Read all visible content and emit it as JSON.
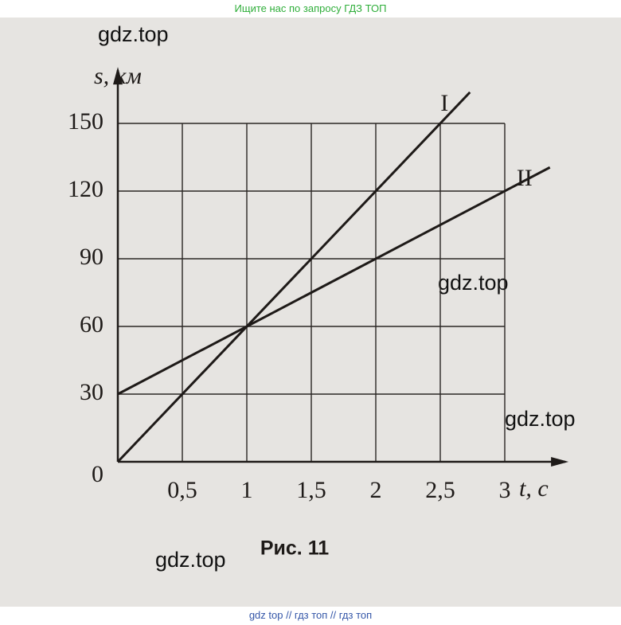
{
  "header": {
    "text": "Ищите нас по запросу ГДЗ ТОП"
  },
  "chart_data": {
    "type": "line",
    "x_label": "t, с",
    "y_label": "s, км",
    "caption": "Рис. 11",
    "xlim": [
      0,
      3.47
    ],
    "ylim": [
      0,
      173.6
    ],
    "xticks": [
      {
        "value": 0.5,
        "label": "0,5"
      },
      1,
      {
        "value": 1.5,
        "label": "1,5"
      },
      2,
      {
        "value": 2.5,
        "label": "2,5"
      },
      3
    ],
    "yticks": [
      0,
      30,
      60,
      90,
      120,
      150
    ],
    "grid": true,
    "series": [
      {
        "name": "I",
        "color": "#1e1a18",
        "x": [
          0,
          2.73
        ],
        "values": [
          0,
          163.8
        ]
      },
      {
        "name": "II",
        "color": "#1e1a18",
        "x": [
          0,
          3.35
        ],
        "values": [
          30,
          130.5
        ]
      }
    ]
  },
  "watermarks": [
    "gdz.top",
    "gdz.top",
    "gdz.top",
    "gdz.top"
  ],
  "footer": {
    "text": "gdz top  //  гдз топ  //  гдз топ"
  }
}
